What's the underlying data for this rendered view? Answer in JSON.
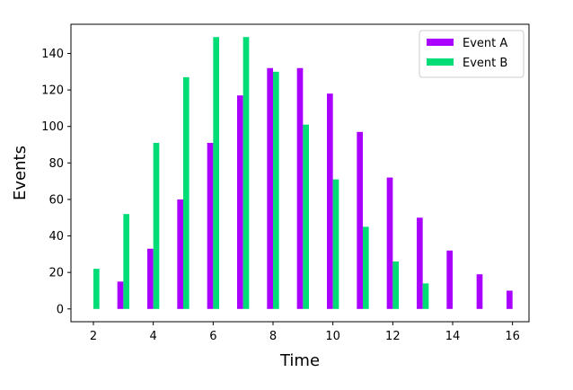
{
  "chart_data": {
    "type": "bar",
    "xlabel": "Time",
    "ylabel": "Events",
    "xlim": [
      1.25,
      16.55
    ],
    "ylim": [
      -7,
      156
    ],
    "xticks": [
      2,
      4,
      6,
      8,
      10,
      12,
      14,
      16
    ],
    "yticks": [
      0,
      20,
      40,
      60,
      80,
      100,
      120,
      140
    ],
    "grid": false,
    "legend_position": "top-right",
    "series": [
      {
        "name": "Event A",
        "color": "#aa00ff",
        "x": [
          3,
          4,
          5,
          6,
          7,
          8,
          9,
          10,
          11,
          12,
          13,
          14,
          15,
          16
        ],
        "values": [
          15,
          33,
          60,
          91,
          117,
          132,
          132,
          118,
          97,
          72,
          50,
          32,
          19,
          10
        ]
      },
      {
        "name": "Event B",
        "color": "#00dd77",
        "x": [
          2,
          3,
          4,
          5,
          6,
          7,
          8,
          9,
          10,
          11,
          12,
          13
        ],
        "values": [
          22,
          52,
          91,
          127,
          149,
          149,
          130,
          101,
          71,
          45,
          26,
          14
        ]
      }
    ]
  }
}
